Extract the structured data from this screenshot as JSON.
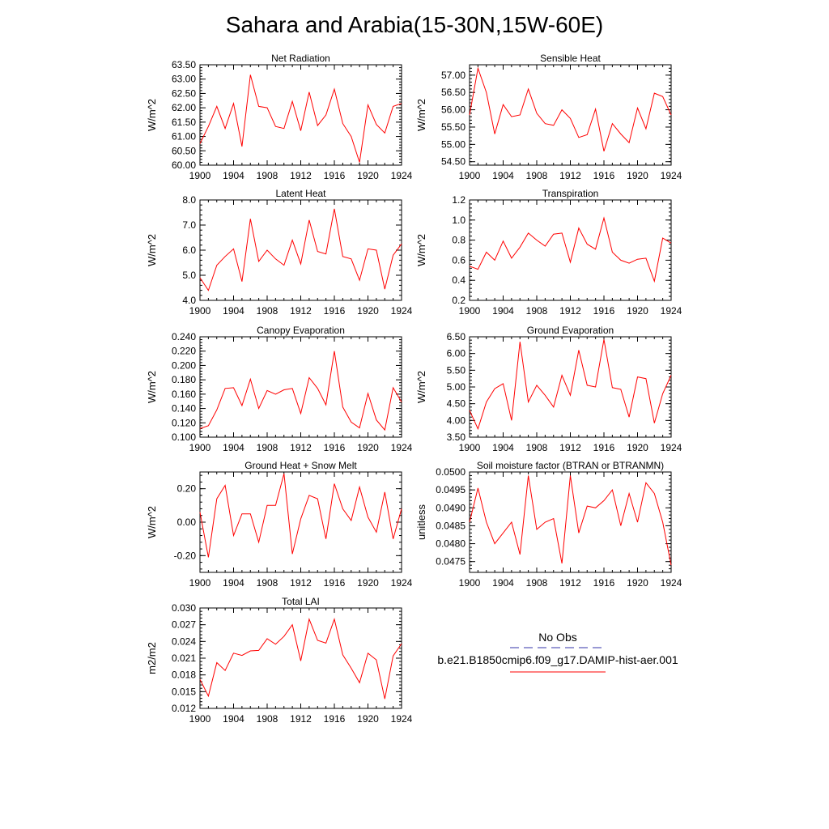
{
  "page_title": "Sahara and Arabia(15-30N,15W-60E)",
  "legend": {
    "obs_label": "No Obs",
    "model_label": "b.e21.B1850cmip6.f09_g17.DAMIP-hist-aer.001",
    "obs_color": "#3333aa",
    "model_color": "#ff0000"
  },
  "chart_data": [
    {
      "type": "line",
      "title": "Net Radiation",
      "ylabel": "W/m^2",
      "xlim": [
        1900,
        1924
      ],
      "ylim": [
        60.0,
        63.5
      ],
      "xticks": [
        "1900",
        "1904",
        "1908",
        "1912",
        "1916",
        "1920",
        "1924"
      ],
      "yticks": [
        "60.00",
        "60.50",
        "61.00",
        "61.50",
        "62.00",
        "62.50",
        "63.00",
        "63.50"
      ],
      "series": [
        {
          "color": "#ff0000",
          "x": [
            1900,
            1901,
            1902,
            1903,
            1904,
            1905,
            1906,
            1907,
            1908,
            1909,
            1910,
            1911,
            1912,
            1913,
            1914,
            1915,
            1916,
            1917,
            1918,
            1919,
            1920,
            1921,
            1922,
            1923,
            1924
          ],
          "values": [
            60.75,
            61.35,
            62.05,
            61.28,
            62.15,
            60.65,
            63.15,
            62.05,
            62.0,
            61.35,
            61.28,
            62.22,
            61.2,
            62.55,
            61.38,
            61.75,
            62.65,
            61.45,
            61.0,
            60.1,
            62.1,
            61.42,
            61.12,
            62.05,
            62.15
          ]
        }
      ]
    },
    {
      "type": "line",
      "title": "Sensible Heat",
      "ylabel": "W/m^2",
      "xlim": [
        1900,
        1924
      ],
      "ylim": [
        54.4,
        57.3
      ],
      "xticks": [
        "1900",
        "1904",
        "1908",
        "1912",
        "1916",
        "1920",
        "1924"
      ],
      "yticks": [
        "54.50",
        "55.00",
        "55.50",
        "56.00",
        "56.50",
        "57.00"
      ],
      "series": [
        {
          "color": "#ff0000",
          "x": [
            1900,
            1901,
            1902,
            1903,
            1904,
            1905,
            1906,
            1907,
            1908,
            1909,
            1910,
            1911,
            1912,
            1913,
            1914,
            1915,
            1916,
            1917,
            1918,
            1919,
            1920,
            1921,
            1922,
            1923,
            1924
          ],
          "values": [
            55.85,
            57.2,
            56.5,
            55.3,
            56.15,
            55.8,
            55.85,
            56.6,
            55.9,
            55.6,
            55.55,
            56.0,
            55.75,
            55.2,
            55.28,
            56.02,
            54.8,
            55.6,
            55.3,
            55.05,
            56.05,
            55.45,
            56.48,
            56.38,
            55.85
          ]
        }
      ]
    },
    {
      "type": "line",
      "title": "Latent Heat",
      "ylabel": "W/m^2",
      "xlim": [
        1900,
        1924
      ],
      "ylim": [
        4.0,
        8.0
      ],
      "xticks": [
        "1900",
        "1904",
        "1908",
        "1912",
        "1916",
        "1920",
        "1924"
      ],
      "yticks": [
        "4.0",
        "5.0",
        "6.0",
        "7.0",
        "8.0"
      ],
      "series": [
        {
          "color": "#ff0000",
          "x": [
            1900,
            1901,
            1902,
            1903,
            1904,
            1905,
            1906,
            1907,
            1908,
            1909,
            1910,
            1911,
            1912,
            1913,
            1914,
            1915,
            1916,
            1917,
            1918,
            1919,
            1920,
            1921,
            1922,
            1923,
            1924
          ],
          "values": [
            4.9,
            4.4,
            5.4,
            5.75,
            6.05,
            4.75,
            7.25,
            5.55,
            6.0,
            5.65,
            5.4,
            6.4,
            5.45,
            7.2,
            5.95,
            5.85,
            7.65,
            5.75,
            5.65,
            4.8,
            6.05,
            6.0,
            4.45,
            5.8,
            6.25
          ]
        }
      ]
    },
    {
      "type": "line",
      "title": "Transpiration",
      "ylabel": "W/m^2",
      "xlim": [
        1900,
        1924
      ],
      "ylim": [
        0.2,
        1.2
      ],
      "xticks": [
        "1900",
        "1904",
        "1908",
        "1912",
        "1916",
        "1920",
        "1924"
      ],
      "yticks": [
        "0.2",
        "0.4",
        "0.6",
        "0.8",
        "1.0",
        "1.2"
      ],
      "series": [
        {
          "color": "#ff0000",
          "x": [
            1900,
            1901,
            1902,
            1903,
            1904,
            1905,
            1906,
            1907,
            1908,
            1909,
            1910,
            1911,
            1912,
            1913,
            1914,
            1915,
            1916,
            1917,
            1918,
            1919,
            1920,
            1921,
            1922,
            1923,
            1924
          ],
          "values": [
            0.54,
            0.51,
            0.68,
            0.6,
            0.79,
            0.62,
            0.73,
            0.87,
            0.8,
            0.74,
            0.86,
            0.87,
            0.58,
            0.92,
            0.76,
            0.71,
            1.02,
            0.68,
            0.6,
            0.57,
            0.61,
            0.62,
            0.39,
            0.82,
            0.77
          ]
        }
      ]
    },
    {
      "type": "line",
      "title": "Canopy Evaporation",
      "ylabel": "W/m^2",
      "xlim": [
        1900,
        1924
      ],
      "ylim": [
        0.1,
        0.24
      ],
      "xticks": [
        "1900",
        "1904",
        "1908",
        "1912",
        "1916",
        "1920",
        "1924"
      ],
      "yticks": [
        "0.100",
        "0.120",
        "0.140",
        "0.160",
        "0.180",
        "0.200",
        "0.220",
        "0.240"
      ],
      "series": [
        {
          "color": "#ff0000",
          "x": [
            1900,
            1901,
            1902,
            1903,
            1904,
            1905,
            1906,
            1907,
            1908,
            1909,
            1910,
            1911,
            1912,
            1913,
            1914,
            1915,
            1916,
            1917,
            1918,
            1919,
            1920,
            1921,
            1922,
            1923,
            1924
          ],
          "values": [
            0.112,
            0.116,
            0.138,
            0.168,
            0.169,
            0.144,
            0.181,
            0.14,
            0.165,
            0.16,
            0.166,
            0.168,
            0.133,
            0.183,
            0.168,
            0.145,
            0.22,
            0.142,
            0.121,
            0.113,
            0.161,
            0.124,
            0.11,
            0.169,
            0.149
          ]
        }
      ]
    },
    {
      "type": "line",
      "title": "Ground Evaporation",
      "ylabel": "W/m^2",
      "xlim": [
        1900,
        1924
      ],
      "ylim": [
        3.5,
        6.5
      ],
      "xticks": [
        "1900",
        "1904",
        "1908",
        "1912",
        "1916",
        "1920",
        "1924"
      ],
      "yticks": [
        "3.50",
        "4.00",
        "4.50",
        "5.00",
        "5.50",
        "6.00",
        "6.50"
      ],
      "series": [
        {
          "color": "#ff0000",
          "x": [
            1900,
            1901,
            1902,
            1903,
            1904,
            1905,
            1906,
            1907,
            1908,
            1909,
            1910,
            1911,
            1912,
            1913,
            1914,
            1915,
            1916,
            1917,
            1918,
            1919,
            1920,
            1921,
            1922,
            1923,
            1924
          ],
          "values": [
            4.3,
            3.75,
            4.55,
            4.95,
            5.1,
            4.0,
            6.35,
            4.55,
            5.05,
            4.75,
            4.4,
            5.35,
            4.75,
            6.1,
            5.05,
            5.0,
            6.42,
            4.98,
            4.93,
            4.1,
            5.3,
            5.25,
            3.92,
            4.8,
            5.35
          ]
        }
      ]
    },
    {
      "type": "line",
      "title": "Ground Heat + Snow Melt",
      "ylabel": "W/m^2",
      "xlim": [
        1900,
        1924
      ],
      "ylim": [
        -0.3,
        0.3
      ],
      "xticks": [
        "1900",
        "1904",
        "1908",
        "1912",
        "1916",
        "1920",
        "1924"
      ],
      "yticks": [
        "-0.20",
        "0.00",
        "0.20"
      ],
      "series": [
        {
          "color": "#ff0000",
          "x": [
            1900,
            1901,
            1902,
            1903,
            1904,
            1905,
            1906,
            1907,
            1908,
            1909,
            1910,
            1911,
            1912,
            1913,
            1914,
            1915,
            1916,
            1917,
            1918,
            1919,
            1920,
            1921,
            1922,
            1923,
            1924
          ],
          "values": [
            0.06,
            -0.21,
            0.14,
            0.22,
            -0.08,
            0.05,
            0.05,
            -0.12,
            0.1,
            0.1,
            0.29,
            -0.19,
            0.02,
            0.16,
            0.14,
            -0.1,
            0.23,
            0.08,
            0.01,
            0.21,
            0.03,
            -0.06,
            0.18,
            -0.1,
            0.08
          ]
        }
      ]
    },
    {
      "type": "line",
      "title": "Soil moisture factor (BTRAN or BTRANMN)",
      "ylabel": "unitless",
      "xlim": [
        1900,
        1924
      ],
      "ylim": [
        0.0472,
        0.05
      ],
      "xticks": [
        "1900",
        "1904",
        "1908",
        "1912",
        "1916",
        "1920",
        "1924"
      ],
      "yticks": [
        "0.0475",
        "0.0480",
        "0.0485",
        "0.0490",
        "0.0495",
        "0.0500"
      ],
      "series": [
        {
          "color": "#ff0000",
          "x": [
            1900,
            1901,
            1902,
            1903,
            1904,
            1905,
            1906,
            1907,
            1908,
            1909,
            1910,
            1911,
            1912,
            1913,
            1914,
            1915,
            1916,
            1917,
            1918,
            1919,
            1920,
            1921,
            1922,
            1923,
            1924
          ],
          "values": [
            0.0486,
            0.04955,
            0.0486,
            0.048,
            0.0483,
            0.0486,
            0.0477,
            0.0499,
            0.0484,
            0.0486,
            0.0487,
            0.04745,
            0.0499,
            0.0483,
            0.04905,
            0.049,
            0.0492,
            0.0495,
            0.0485,
            0.0494,
            0.0486,
            0.0497,
            0.0494,
            0.0486,
            0.0474
          ]
        }
      ]
    },
    {
      "type": "line",
      "title": "Total LAI",
      "ylabel": "m2/m2",
      "xlim": [
        1900,
        1924
      ],
      "ylim": [
        0.012,
        0.03
      ],
      "xticks": [
        "1900",
        "1904",
        "1908",
        "1912",
        "1916",
        "1920",
        "1924"
      ],
      "yticks": [
        "0.012",
        "0.015",
        "0.018",
        "0.021",
        "0.024",
        "0.027",
        "0.030"
      ],
      "series": [
        {
          "color": "#ff0000",
          "x": [
            1900,
            1901,
            1902,
            1903,
            1904,
            1905,
            1906,
            1907,
            1908,
            1909,
            1910,
            1911,
            1912,
            1913,
            1914,
            1915,
            1916,
            1917,
            1918,
            1919,
            1920,
            1921,
            1922,
            1923,
            1924
          ],
          "values": [
            0.0172,
            0.0142,
            0.0202,
            0.0188,
            0.0219,
            0.0215,
            0.0223,
            0.0224,
            0.0245,
            0.0235,
            0.0249,
            0.027,
            0.0205,
            0.028,
            0.0242,
            0.0237,
            0.028,
            0.0216,
            0.0192,
            0.0166,
            0.0219,
            0.0207,
            0.0137,
            0.0214,
            0.0236
          ]
        }
      ]
    }
  ]
}
